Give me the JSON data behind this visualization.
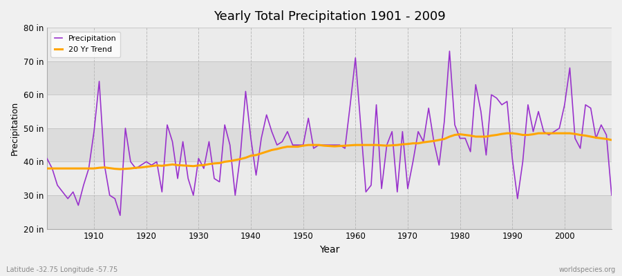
{
  "title": "Yearly Total Precipitation 1901 - 2009",
  "xlabel": "Year",
  "ylabel": "Precipitation",
  "xlim": [
    1901,
    2009
  ],
  "ylim": [
    20,
    80
  ],
  "yticks": [
    20,
    30,
    40,
    50,
    60,
    70,
    80
  ],
  "ytick_labels": [
    "20 in",
    "30 in",
    "40 in",
    "50 in",
    "60 in",
    "70 in",
    "80 in"
  ],
  "xticks": [
    1910,
    1920,
    1930,
    1940,
    1950,
    1960,
    1970,
    1980,
    1990,
    2000
  ],
  "bg_color": "#f0f0f0",
  "plot_bg_light": "#ebebeb",
  "plot_bg_dark": "#dcdcdc",
  "precip_color": "#9932CC",
  "trend_color": "#FFA500",
  "legend_labels": [
    "Precipitation",
    "20 Yr Trend"
  ],
  "footer_left": "Latitude -32.75 Longitude -57.75",
  "footer_right": "worldspecies.org",
  "years": [
    1901,
    1902,
    1903,
    1904,
    1905,
    1906,
    1907,
    1908,
    1909,
    1910,
    1911,
    1912,
    1913,
    1914,
    1915,
    1916,
    1917,
    1918,
    1919,
    1920,
    1921,
    1922,
    1923,
    1924,
    1925,
    1926,
    1927,
    1928,
    1929,
    1930,
    1931,
    1932,
    1933,
    1934,
    1935,
    1936,
    1937,
    1938,
    1939,
    1940,
    1941,
    1942,
    1943,
    1944,
    1945,
    1946,
    1947,
    1948,
    1949,
    1950,
    1951,
    1952,
    1953,
    1954,
    1955,
    1956,
    1957,
    1958,
    1959,
    1960,
    1961,
    1962,
    1963,
    1964,
    1965,
    1966,
    1967,
    1968,
    1969,
    1970,
    1971,
    1972,
    1973,
    1974,
    1975,
    1976,
    1977,
    1978,
    1979,
    1980,
    1981,
    1982,
    1983,
    1984,
    1985,
    1986,
    1987,
    1988,
    1989,
    1990,
    1991,
    1992,
    1993,
    1994,
    1995,
    1996,
    1997,
    1998,
    1999,
    2000,
    2001,
    2002,
    2003,
    2004,
    2005,
    2006,
    2007,
    2008,
    2009
  ],
  "precip": [
    41,
    38,
    33,
    31,
    29,
    31,
    27,
    33,
    38,
    49,
    64,
    39,
    30,
    29,
    24,
    50,
    40,
    38,
    39,
    40,
    39,
    40,
    31,
    51,
    46,
    35,
    46,
    35,
    30,
    41,
    38,
    46,
    35,
    34,
    51,
    45,
    30,
    42,
    61,
    47,
    36,
    47,
    54,
    49,
    45,
    46,
    49,
    45,
    45,
    45,
    53,
    44,
    45,
    45,
    45,
    45,
    45,
    44,
    57,
    71,
    51,
    31,
    33,
    57,
    32,
    45,
    49,
    31,
    49,
    32,
    40,
    49,
    46,
    56,
    46,
    39,
    52,
    73,
    51,
    47,
    47,
    43,
    63,
    55,
    42,
    60,
    59,
    57,
    58,
    41,
    29,
    40,
    57,
    49,
    55,
    49,
    48,
    49,
    50,
    57,
    68,
    47,
    44,
    57,
    56,
    47,
    51,
    48,
    30
  ],
  "trend": [
    38.0,
    38.0,
    38.0,
    38.0,
    38.0,
    38.0,
    38.0,
    38.0,
    38.0,
    38.0,
    38.2,
    38.3,
    38.1,
    37.9,
    37.8,
    37.9,
    38.0,
    38.2,
    38.3,
    38.5,
    38.7,
    38.9,
    38.8,
    39.0,
    39.2,
    39.0,
    38.9,
    38.8,
    38.7,
    38.9,
    39.0,
    39.3,
    39.5,
    39.6,
    40.0,
    40.2,
    40.5,
    40.8,
    41.2,
    41.8,
    42.0,
    42.5,
    43.0,
    43.5,
    43.8,
    44.2,
    44.5,
    44.5,
    44.5,
    44.8,
    45.0,
    45.0,
    45.0,
    44.8,
    44.7,
    44.6,
    44.7,
    44.8,
    44.9,
    45.0,
    45.0,
    45.0,
    45.0,
    45.0,
    44.9,
    44.8,
    44.9,
    45.0,
    45.2,
    45.3,
    45.5,
    45.5,
    45.8,
    46.0,
    46.2,
    46.5,
    46.8,
    47.5,
    48.0,
    48.2,
    48.0,
    47.8,
    47.5,
    47.5,
    47.5,
    47.8,
    48.0,
    48.3,
    48.5,
    48.5,
    48.3,
    48.0,
    48.0,
    48.2,
    48.5,
    48.5,
    48.5,
    48.5,
    48.5,
    48.5,
    48.5,
    48.3,
    48.0,
    47.8,
    47.5,
    47.2,
    47.0,
    46.8,
    46.5
  ]
}
